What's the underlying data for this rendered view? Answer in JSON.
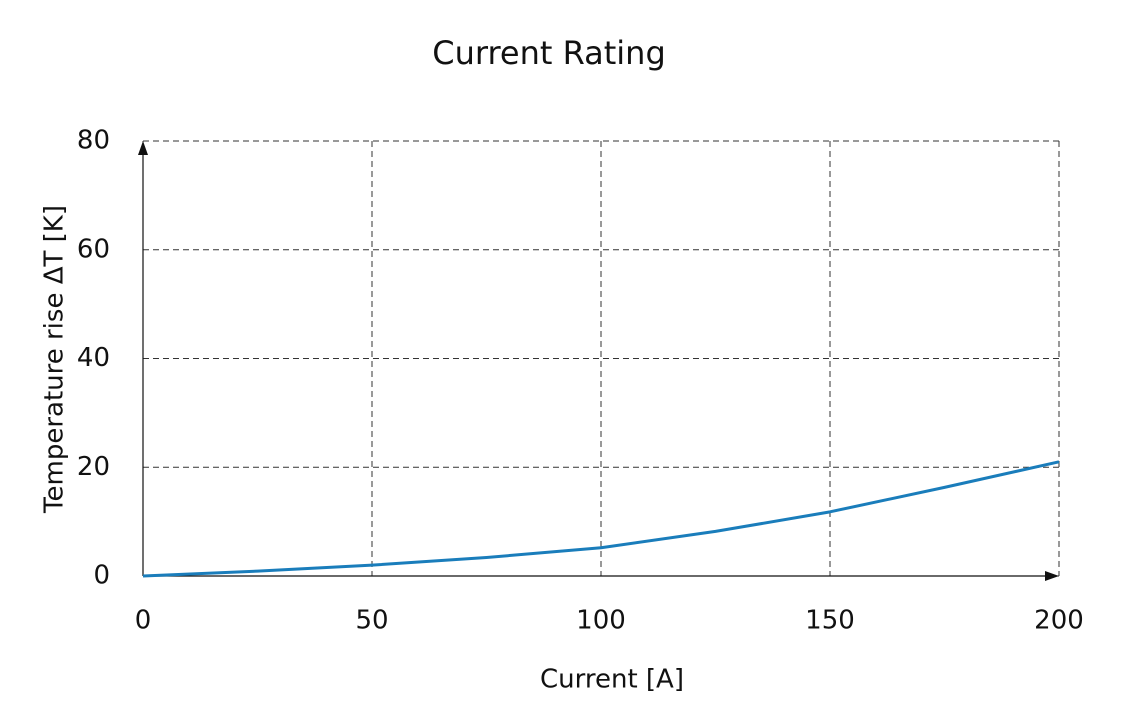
{
  "chart_data": {
    "type": "line",
    "title": "Current Rating",
    "x_label": "Current [A]",
    "y_label": "Temperature rise ΔT [K]",
    "x": [
      0,
      25,
      50,
      75,
      100,
      125,
      150,
      175,
      200
    ],
    "series": [
      {
        "name": "Temperature rise",
        "color": "#1a7dbb",
        "values": [
          0,
          0.9,
          2.0,
          3.4,
          5.2,
          8.2,
          11.8,
          16.3,
          21
        ]
      }
    ],
    "xlim": [
      0,
      200
    ],
    "xticks": [
      0,
      50,
      100,
      150,
      200
    ],
    "ylim": [
      0,
      80
    ],
    "yticks": [
      0,
      20,
      40,
      60,
      80
    ],
    "grid": true
  }
}
